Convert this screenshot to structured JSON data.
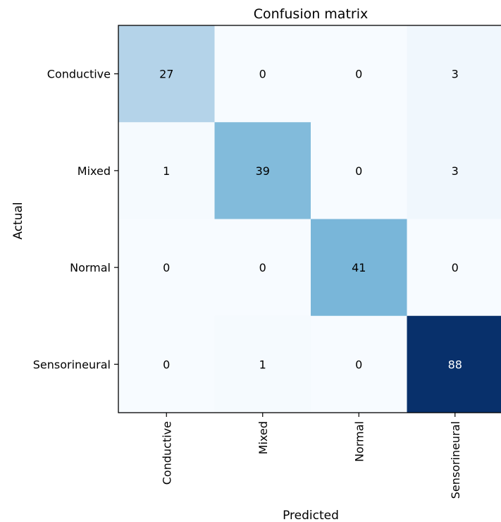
{
  "chart_data": {
    "type": "heatmap",
    "title": "Confusion matrix",
    "xlabel": "Predicted",
    "ylabel": "Actual",
    "x_categories": [
      "Conductive",
      "Mixed",
      "Normal",
      "Sensorineural"
    ],
    "y_categories": [
      "Conductive",
      "Mixed",
      "Normal",
      "Sensorineural"
    ],
    "values": [
      [
        27,
        0,
        0,
        3
      ],
      [
        1,
        39,
        0,
        3
      ],
      [
        0,
        0,
        41,
        0
      ],
      [
        0,
        1,
        0,
        88
      ]
    ],
    "colormap": "Blues",
    "colorbar": false,
    "grid": false
  }
}
